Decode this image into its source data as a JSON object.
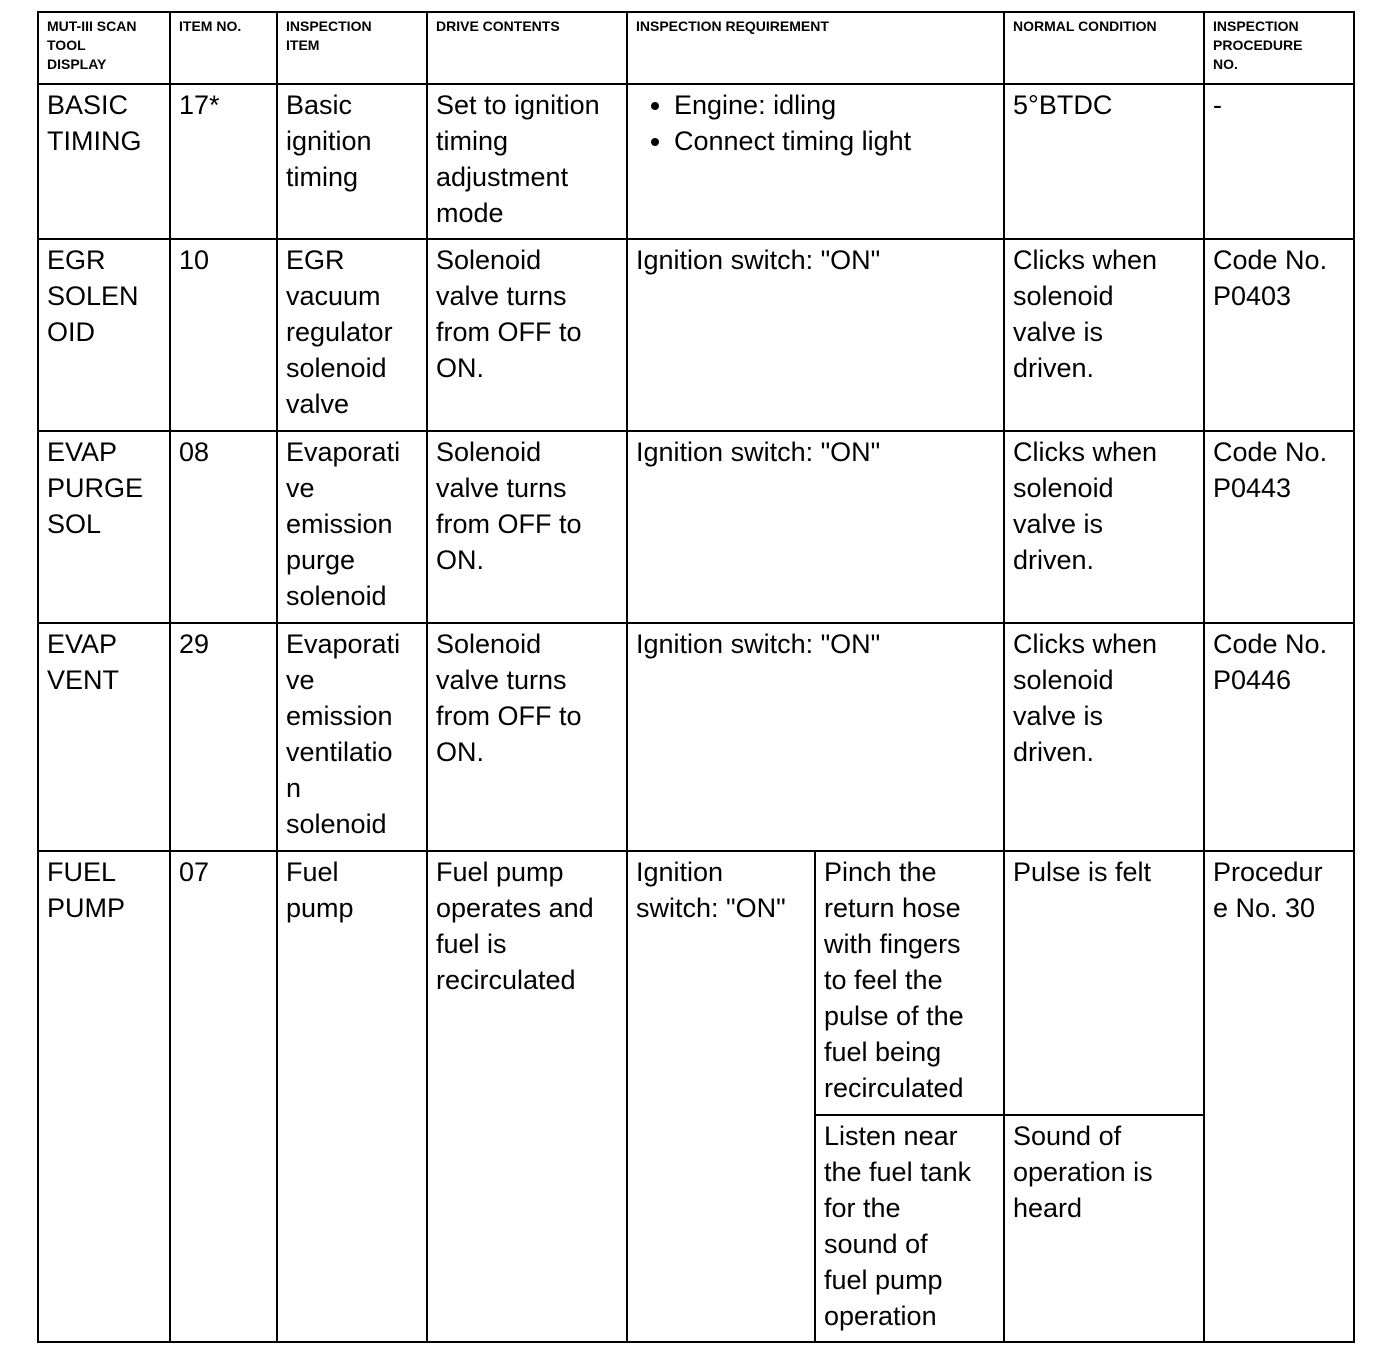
{
  "headers": [
    "MUT-III SCAN\nTOOL\nDISPLAY",
    "ITEM NO.",
    "INSPECTION\nITEM",
    "DRIVE CONTENTS",
    "INSPECTION REQUIREMENT",
    "NORMAL CONDITION",
    "INSPECTION\nPROCEDURE\nNO."
  ],
  "rows": [
    {
      "display": "BASIC\nTIMING",
      "item_no": "17*",
      "item": "Basic\nignition\ntiming",
      "drive": "Set to ignition\ntiming\nadjustment\nmode",
      "requirement": [
        "Engine: idling",
        "Connect timing light"
      ],
      "normal": "5°BTDC",
      "procedure": "-"
    },
    {
      "display": "EGR\nSOLEN\nOID",
      "item_no": "10",
      "item": "EGR\nvacuum\nregulator\nsolenoid\nvalve",
      "drive": "Solenoid\nvalve turns\nfrom OFF to\nON.",
      "requirement": "Ignition switch: \"ON\"",
      "normal": "Clicks when\nsolenoid\nvalve is\ndriven.",
      "procedure": "Code No.\nP0403"
    },
    {
      "display": "EVAP\nPURGE\nSOL",
      "item_no": "08",
      "item": "Evaporati\nve\nemission\npurge\nsolenoid",
      "drive": "Solenoid\nvalve turns\nfrom OFF to\nON.",
      "requirement": "Ignition switch: \"ON\"",
      "normal": "Clicks when\nsolenoid\nvalve is\ndriven.",
      "procedure": "Code No.\nP0443"
    },
    {
      "display": "EVAP\nVENT",
      "item_no": "29",
      "item": "Evaporati\nve\nemission\nventilatio\nn\nsolenoid",
      "drive": "Solenoid\nvalve turns\nfrom OFF to\nON.",
      "requirement": "Ignition switch: \"ON\"",
      "normal": "Clicks when\nsolenoid\nvalve is\ndriven.",
      "procedure": "Code No.\nP0446"
    },
    {
      "display": "FUEL\nPUMP",
      "item_no": "07",
      "item": "Fuel\npump",
      "drive": "Fuel pump\noperates and\nfuel is\nrecirculated",
      "requirement": "Ignition\nswitch: \"ON\"",
      "sub": [
        {
          "method": "Pinch the\nreturn hose\nwith fingers\nto feel the\npulse of the\nfuel being\nrecirculated",
          "normal": "Pulse is felt"
        },
        {
          "method": "Listen near\nthe fuel tank\nfor the\nsound of\nfuel pump\noperation",
          "normal": "Sound of\noperation is\nheard"
        }
      ],
      "procedure": "Procedur\ne No. 30"
    }
  ]
}
